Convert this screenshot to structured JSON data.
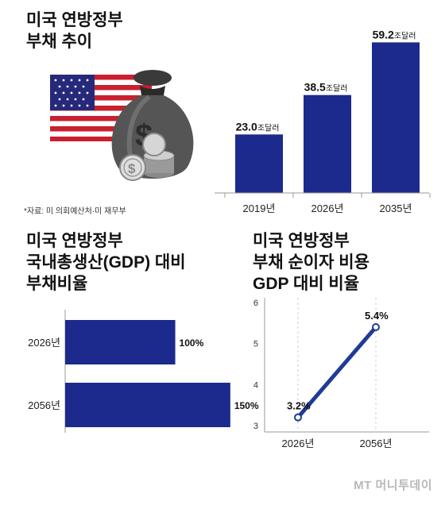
{
  "colors": {
    "bar": "#1b2a8c",
    "line": "#1f3b96",
    "axis": "#999999",
    "text": "#111111"
  },
  "illustration": {
    "icons": [
      "us-flag-icon",
      "money-bag-icon",
      "dollar-coins-icon"
    ]
  },
  "source_note": "*자료: 미 의회예산처·미 재무부",
  "watermark": "MT 머니투데이",
  "chart_data": [
    {
      "type": "bar",
      "title": "미국 연방정부\n부채 추이",
      "categories": [
        "2019년",
        "2026년",
        "2035년"
      ],
      "values": [
        23.0,
        38.5,
        59.2
      ],
      "labels": [
        "23.0",
        "38.5",
        "59.2"
      ],
      "unit": "조달러",
      "ylim": [
        0,
        64
      ]
    },
    {
      "type": "bar",
      "orientation": "horizontal",
      "title": "미국 연방정부\n국내총생산(GDP) 대비\n부채비율",
      "categories": [
        "2026년",
        "2056년"
      ],
      "values": [
        100,
        150
      ],
      "labels": [
        "100%",
        "150%"
      ],
      "xlim": [
        0,
        166
      ]
    },
    {
      "type": "line",
      "title": "미국 연방정부\n부채 순이자 비용\nGDP 대비 비율",
      "x": [
        "2026년",
        "2056년"
      ],
      "values": [
        3.2,
        5.4
      ],
      "labels": [
        "3.2%",
        "5.4%"
      ],
      "ylim": [
        3,
        6
      ],
      "yticks": [
        3,
        4,
        5,
        6
      ],
      "grid": "vertical-dashed"
    }
  ]
}
